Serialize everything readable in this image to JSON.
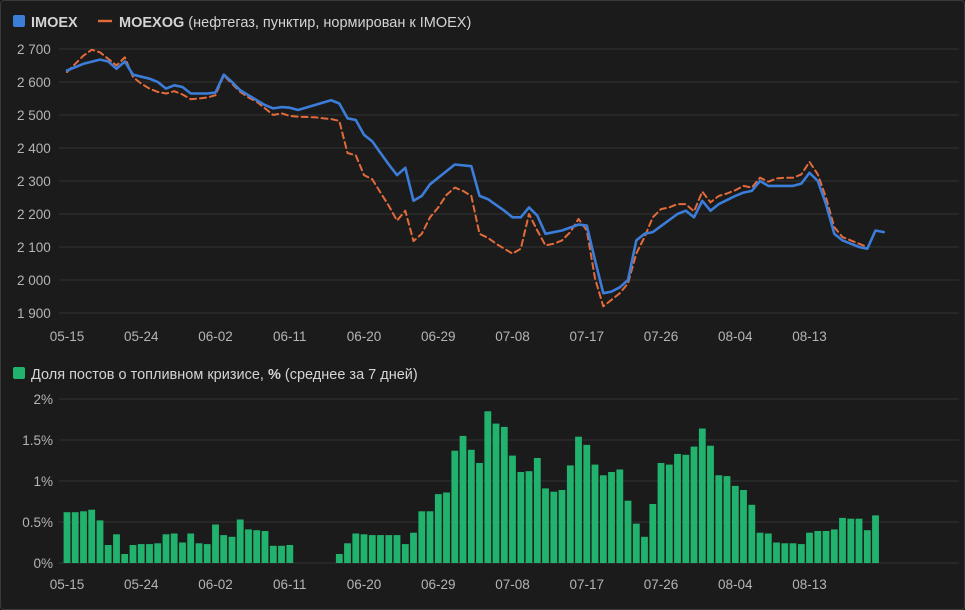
{
  "colors": {
    "imoex": "#3b7dd8",
    "moexog": "#e36b3a",
    "bars": "#21b36e",
    "grid": "#333333",
    "text": "#b4b4b4"
  },
  "chart_data": [
    {
      "type": "line",
      "legend": {
        "imoex_label": "IMOEX",
        "moexog_label": "MOEXOG",
        "moexog_note": " (нефтегаз, пунктир, нормирован к IMOEX)"
      },
      "ylim": [
        1900,
        2700
      ],
      "yticks": [
        "1 900",
        "2 000",
        "2 100",
        "2 200",
        "2 300",
        "2 400",
        "2 500",
        "2 600",
        "2 700"
      ],
      "ytick_values": [
        1900,
        2000,
        2100,
        2200,
        2300,
        2400,
        2500,
        2600,
        2700
      ],
      "xlim_day": [
        0,
        100
      ],
      "xticks": [
        "05-15",
        "05-24",
        "06-02",
        "06-11",
        "06-20",
        "06-29",
        "07-08",
        "07-17",
        "07-26",
        "08-04",
        "08-13"
      ],
      "series": [
        {
          "name": "IMOEX",
          "style": "solid",
          "points": [
            [
              "05-15",
              2635
            ],
            [
              "05-17",
              2655
            ],
            [
              "05-19",
              2668
            ],
            [
              "05-20",
              2662
            ],
            [
              "05-21",
              2640
            ],
            [
              "05-22",
              2662
            ],
            [
              "05-23",
              2622
            ],
            [
              "05-25",
              2610
            ],
            [
              "05-26",
              2600
            ],
            [
              "05-27",
              2580
            ],
            [
              "05-28",
              2590
            ],
            [
              "05-29",
              2585
            ],
            [
              "05-30",
              2565
            ],
            [
              "06-01",
              2565
            ],
            [
              "06-02",
              2568
            ],
            [
              "06-03",
              2622
            ],
            [
              "06-04",
              2600
            ],
            [
              "06-05",
              2575
            ],
            [
              "06-06",
              2560
            ],
            [
              "06-07",
              2545
            ],
            [
              "06-08",
              2530
            ],
            [
              "06-09",
              2520
            ],
            [
              "06-10",
              2524
            ],
            [
              "06-11",
              2522
            ],
            [
              "06-12",
              2515
            ],
            [
              "06-14",
              2530
            ],
            [
              "06-16",
              2545
            ],
            [
              "06-17",
              2535
            ],
            [
              "06-18",
              2490
            ],
            [
              "06-19",
              2485
            ],
            [
              "06-20",
              2440
            ],
            [
              "06-21",
              2420
            ],
            [
              "06-22",
              2385
            ],
            [
              "06-23",
              2350
            ],
            [
              "06-24",
              2318
            ],
            [
              "06-25",
              2340
            ],
            [
              "06-26",
              2240
            ],
            [
              "06-27",
              2255
            ],
            [
              "06-28",
              2290
            ],
            [
              "06-30",
              2330
            ],
            [
              "07-01",
              2350
            ],
            [
              "07-03",
              2345
            ],
            [
              "07-04",
              2255
            ],
            [
              "07-05",
              2245
            ],
            [
              "07-07",
              2210
            ],
            [
              "07-08",
              2190
            ],
            [
              "07-09",
              2190
            ],
            [
              "07-10",
              2220
            ],
            [
              "07-11",
              2195
            ],
            [
              "07-12",
              2140
            ],
            [
              "07-14",
              2150
            ],
            [
              "07-16",
              2168
            ],
            [
              "07-17",
              2165
            ],
            [
              "07-18",
              2060
            ],
            [
              "07-19",
              1960
            ],
            [
              "07-20",
              1965
            ],
            [
              "07-21",
              1978
            ],
            [
              "07-22",
              2000
            ],
            [
              "07-23",
              2120
            ],
            [
              "07-24",
              2140
            ],
            [
              "07-25",
              2145
            ],
            [
              "07-28",
              2200
            ],
            [
              "07-29",
              2210
            ],
            [
              "07-30",
              2190
            ],
            [
              "07-31",
              2240
            ],
            [
              "08-01",
              2210
            ],
            [
              "08-02",
              2230
            ],
            [
              "08-04",
              2255
            ],
            [
              "08-05",
              2265
            ],
            [
              "08-06",
              2270
            ],
            [
              "08-07",
              2300
            ],
            [
              "08-08",
              2285
            ],
            [
              "08-11",
              2285
            ],
            [
              "08-12",
              2292
            ],
            [
              "08-13",
              2325
            ],
            [
              "08-14",
              2300
            ],
            [
              "08-15",
              2230
            ],
            [
              "08-16",
              2140
            ],
            [
              "08-17",
              2120
            ],
            [
              "08-18",
              2110
            ],
            [
              "08-19",
              2100
            ],
            [
              "08-20",
              2095
            ],
            [
              "08-21",
              2150
            ],
            [
              "08-22",
              2145
            ]
          ]
        },
        {
          "name": "MOEXOG",
          "style": "dashed",
          "points": [
            [
              "05-15",
              2630
            ],
            [
              "05-16",
              2655
            ],
            [
              "05-17",
              2680
            ],
            [
              "05-18",
              2698
            ],
            [
              "05-19",
              2690
            ],
            [
              "05-20",
              2670
            ],
            [
              "05-21",
              2650
            ],
            [
              "05-22",
              2675
            ],
            [
              "05-23",
              2615
            ],
            [
              "05-24",
              2595
            ],
            [
              "05-25",
              2580
            ],
            [
              "05-26",
              2570
            ],
            [
              "05-27",
              2565
            ],
            [
              "05-28",
              2572
            ],
            [
              "05-29",
              2562
            ],
            [
              "05-30",
              2548
            ],
            [
              "05-31",
              2550
            ],
            [
              "06-01",
              2553
            ],
            [
              "06-02",
              2560
            ],
            [
              "06-03",
              2620
            ],
            [
              "06-04",
              2595
            ],
            [
              "06-05",
              2570
            ],
            [
              "06-06",
              2553
            ],
            [
              "06-07",
              2540
            ],
            [
              "06-08",
              2520
            ],
            [
              "06-09",
              2500
            ],
            [
              "06-10",
              2505
            ],
            [
              "06-11",
              2497
            ],
            [
              "06-12",
              2495
            ],
            [
              "06-14",
              2493
            ],
            [
              "06-15",
              2490
            ],
            [
              "06-16",
              2488
            ],
            [
              "06-17",
              2482
            ],
            [
              "06-18",
              2385
            ],
            [
              "06-19",
              2378
            ],
            [
              "06-20",
              2318
            ],
            [
              "06-21",
              2305
            ],
            [
              "06-22",
              2265
            ],
            [
              "06-23",
              2225
            ],
            [
              "06-24",
              2180
            ],
            [
              "06-25",
              2210
            ],
            [
              "06-26",
              2118
            ],
            [
              "06-27",
              2140
            ],
            [
              "06-28",
              2190
            ],
            [
              "06-29",
              2220
            ],
            [
              "06-30",
              2258
            ],
            [
              "07-01",
              2280
            ],
            [
              "07-02",
              2270
            ],
            [
              "07-03",
              2255
            ],
            [
              "07-04",
              2140
            ],
            [
              "07-05",
              2128
            ],
            [
              "07-06",
              2110
            ],
            [
              "07-07",
              2095
            ],
            [
              "07-08",
              2080
            ],
            [
              "07-09",
              2095
            ],
            [
              "07-10",
              2200
            ],
            [
              "07-11",
              2150
            ],
            [
              "07-12",
              2105
            ],
            [
              "07-13",
              2110
            ],
            [
              "07-14",
              2120
            ],
            [
              "07-15",
              2145
            ],
            [
              "07-16",
              2185
            ],
            [
              "07-17",
              2150
            ],
            [
              "07-18",
              2005
            ],
            [
              "07-19",
              1920
            ],
            [
              "07-20",
              1940
            ],
            [
              "07-21",
              1960
            ],
            [
              "07-22",
              1990
            ],
            [
              "07-23",
              2080
            ],
            [
              "07-24",
              2130
            ],
            [
              "07-25",
              2190
            ],
            [
              "07-26",
              2215
            ],
            [
              "07-27",
              2220
            ],
            [
              "07-28",
              2230
            ],
            [
              "07-29",
              2230
            ],
            [
              "07-30",
              2208
            ],
            [
              "07-31",
              2268
            ],
            [
              "08-01",
              2235
            ],
            [
              "08-02",
              2255
            ],
            [
              "08-03",
              2262
            ],
            [
              "08-04",
              2272
            ],
            [
              "08-05",
              2285
            ],
            [
              "08-06",
              2280
            ],
            [
              "08-07",
              2310
            ],
            [
              "08-08",
              2298
            ],
            [
              "08-09",
              2308
            ],
            [
              "08-10",
              2310
            ],
            [
              "08-11",
              2310
            ],
            [
              "08-12",
              2320
            ],
            [
              "08-13",
              2358
            ],
            [
              "08-14",
              2320
            ],
            [
              "08-15",
              2250
            ],
            [
              "08-16",
              2160
            ],
            [
              "08-17",
              2130
            ],
            [
              "08-18",
              2120
            ],
            [
              "08-19",
              2110
            ],
            [
              "08-20",
              2100
            ]
          ]
        }
      ]
    },
    {
      "type": "bar",
      "legend": {
        "label": "Доля постов о топливном кризисе, ",
        "unit": "%",
        "note": " (среднее за 7 дней)"
      },
      "ylim": [
        0,
        2
      ],
      "yticks": [
        "0%",
        "0.5%",
        "1%",
        "1.5%",
        "2%"
      ],
      "ytick_values": [
        0,
        0.5,
        1,
        1.5,
        2
      ],
      "xticks": [
        "05-15",
        "05-24",
        "06-02",
        "06-11",
        "06-20",
        "06-29",
        "07-08",
        "07-17",
        "07-26",
        "08-04",
        "08-13"
      ],
      "first_day": "05-15",
      "values": [
        0.62,
        0.62,
        0.63,
        0.65,
        0.52,
        0.22,
        0.35,
        0.11,
        0.22,
        0.23,
        0.23,
        0.24,
        0.35,
        0.36,
        0.25,
        0.36,
        0.24,
        0.23,
        0.47,
        0.34,
        0.32,
        0.53,
        0.41,
        0.4,
        0.39,
        0.21,
        0.21,
        0.22,
        0,
        0,
        0,
        0,
        0,
        0.11,
        0.24,
        0.36,
        0.35,
        0.34,
        0.34,
        0.34,
        0.34,
        0.23,
        0.37,
        0.63,
        0.63,
        0.84,
        0.86,
        1.37,
        1.55,
        1.38,
        1.22,
        1.85,
        1.7,
        1.66,
        1.31,
        1.11,
        1.12,
        1.28,
        0.91,
        0.87,
        0.89,
        1.19,
        1.54,
        1.44,
        1.2,
        1.07,
        1.11,
        1.14,
        0.76,
        0.48,
        0.32,
        0.72,
        1.22,
        1.2,
        1.33,
        1.32,
        1.42,
        1.64,
        1.43,
        1.07,
        1.06,
        0.94,
        0.89,
        0.71,
        0.37,
        0.36,
        0.25,
        0.24,
        0.24,
        0.23,
        0.37,
        0.39,
        0.39,
        0.41,
        0.55,
        0.54,
        0.54,
        0.4,
        0.58
      ]
    }
  ]
}
